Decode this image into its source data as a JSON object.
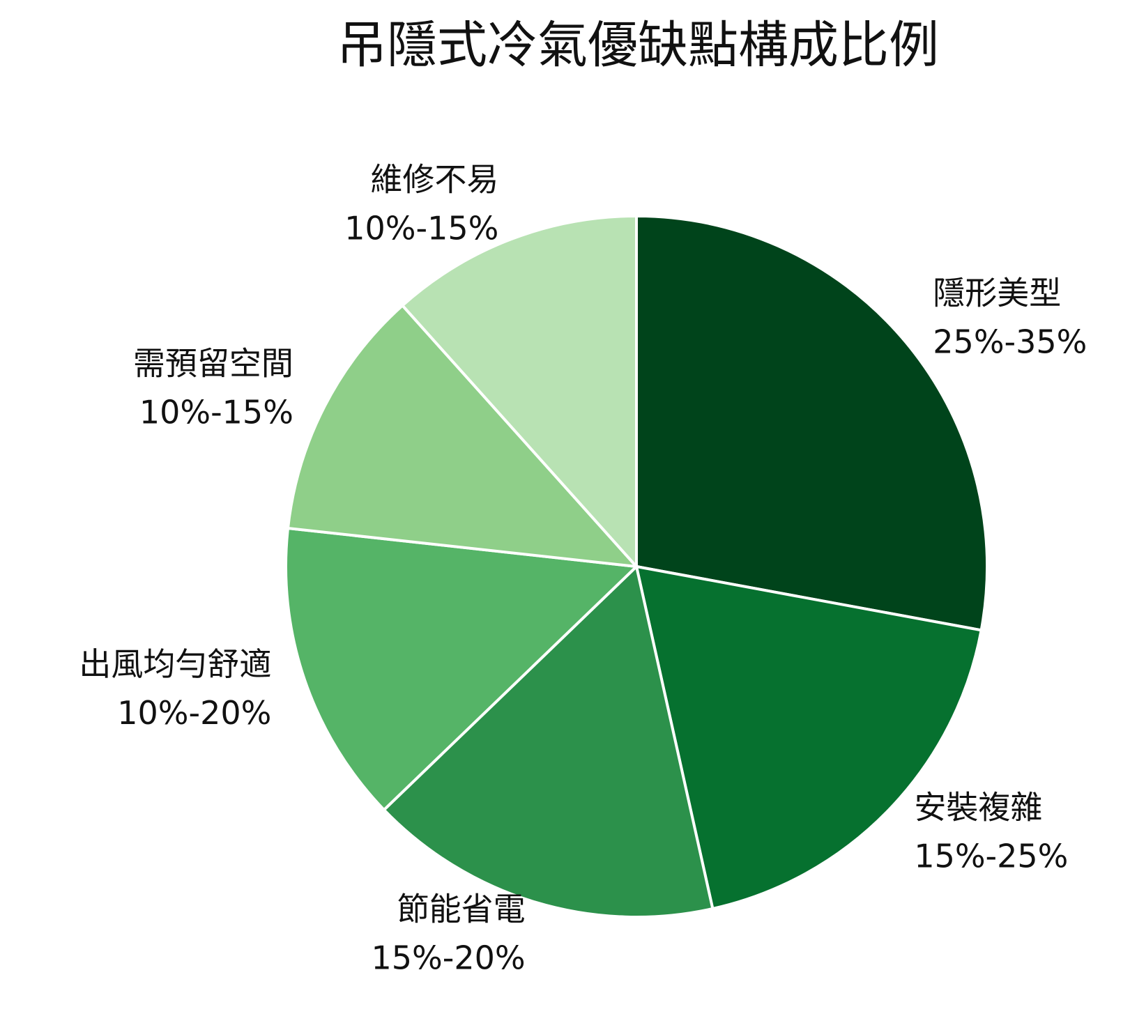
{
  "chart_data": {
    "type": "pie",
    "title": "吊隱式冷氣優缺點構成比例",
    "categories": [
      "隱形美型",
      "安裝複雜",
      "節能省電",
      "出風均勻舒適",
      "需預留空間",
      "維修不易"
    ],
    "values": [
      30,
      20,
      17.5,
      15,
      12.5,
      12.5
    ],
    "value_labels": [
      "25%-35%",
      "15%-25%",
      "15%-20%",
      "10%-20%",
      "10%-15%",
      "10%-15%"
    ],
    "colors": [
      "#00441b",
      "#06712f",
      "#2c914b",
      "#55b467",
      "#8fcf89",
      "#b8e2b3"
    ]
  }
}
